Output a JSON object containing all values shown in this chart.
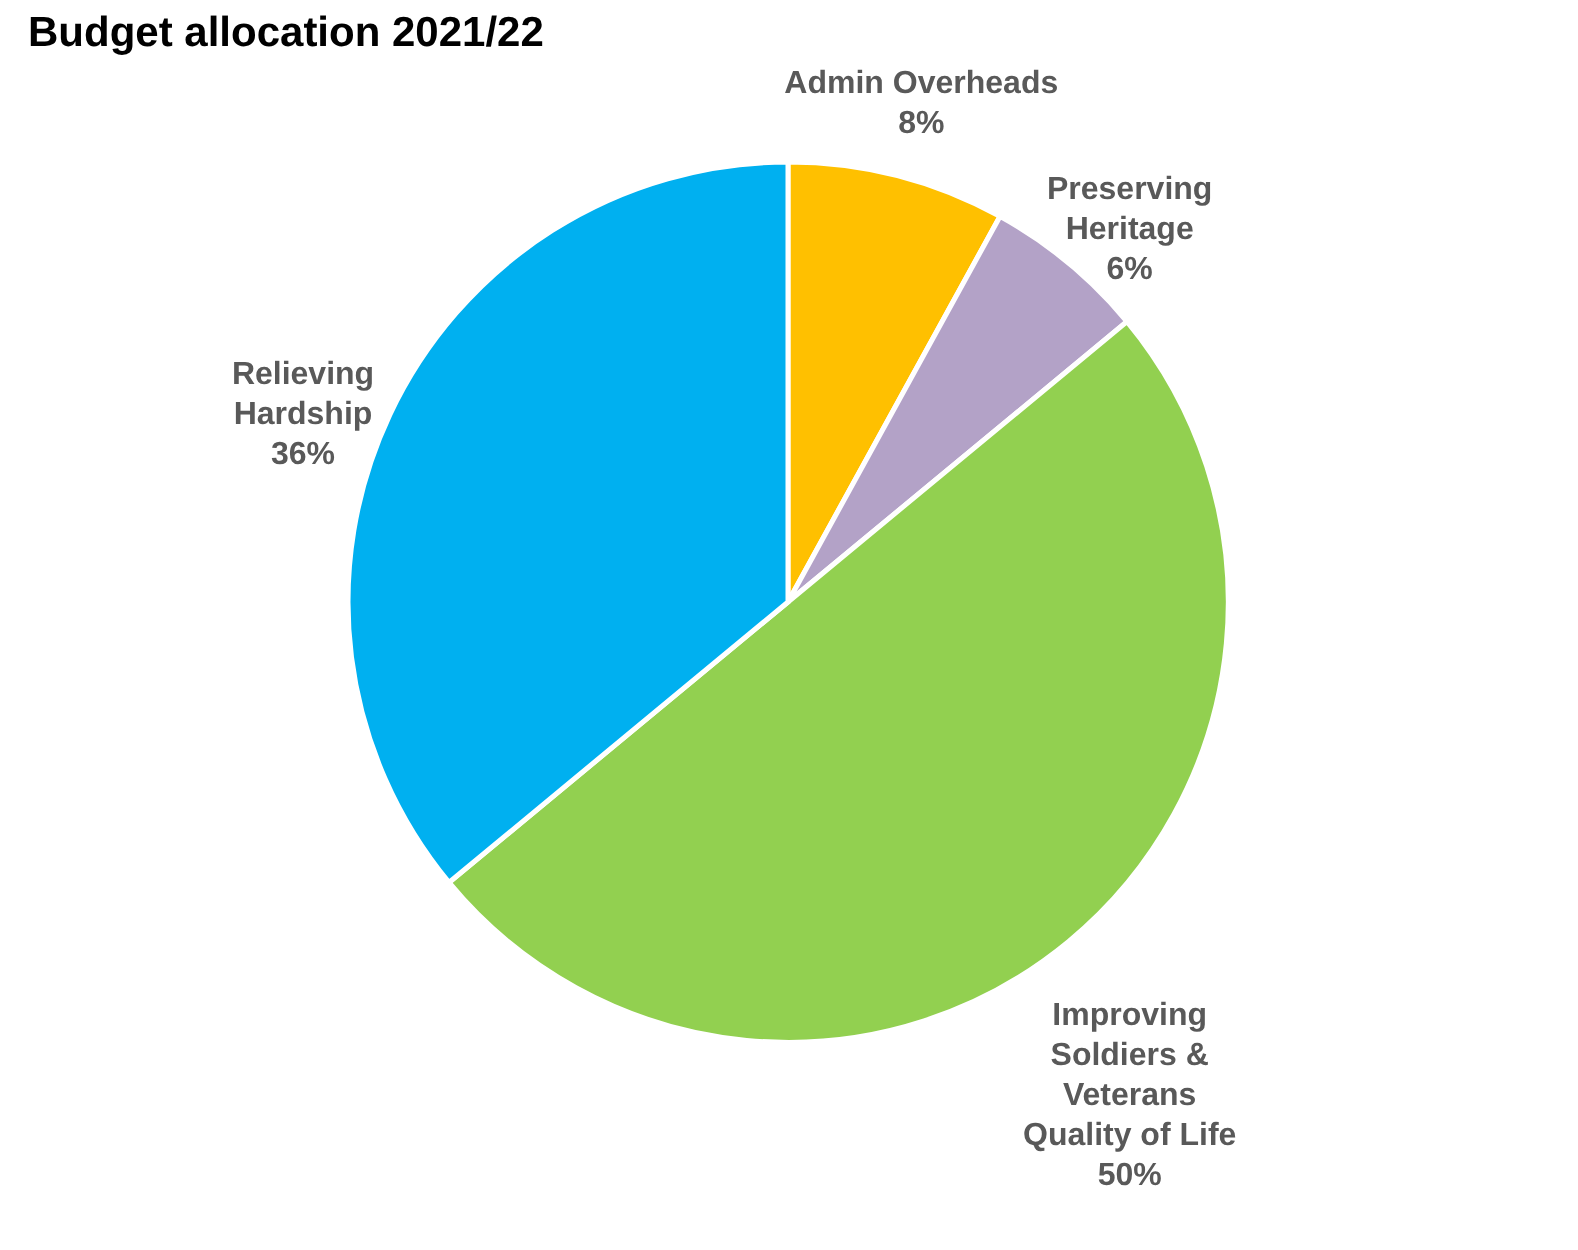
{
  "chart_data": {
    "type": "pie",
    "title": "Budget allocation 2021/22",
    "categories": [
      "Admin Overheads",
      "Preserving Heritage",
      "Improving Soldiers & Veterans Quality of Life",
      "Relieving Hardship"
    ],
    "values": [
      8,
      6,
      50,
      36
    ],
    "value_labels": [
      "8%",
      "6%",
      "50%",
      "36%"
    ],
    "colors": [
      "#ffc000",
      "#b3a2c7",
      "#92d050",
      "#00b0f0"
    ],
    "legend": false
  }
}
